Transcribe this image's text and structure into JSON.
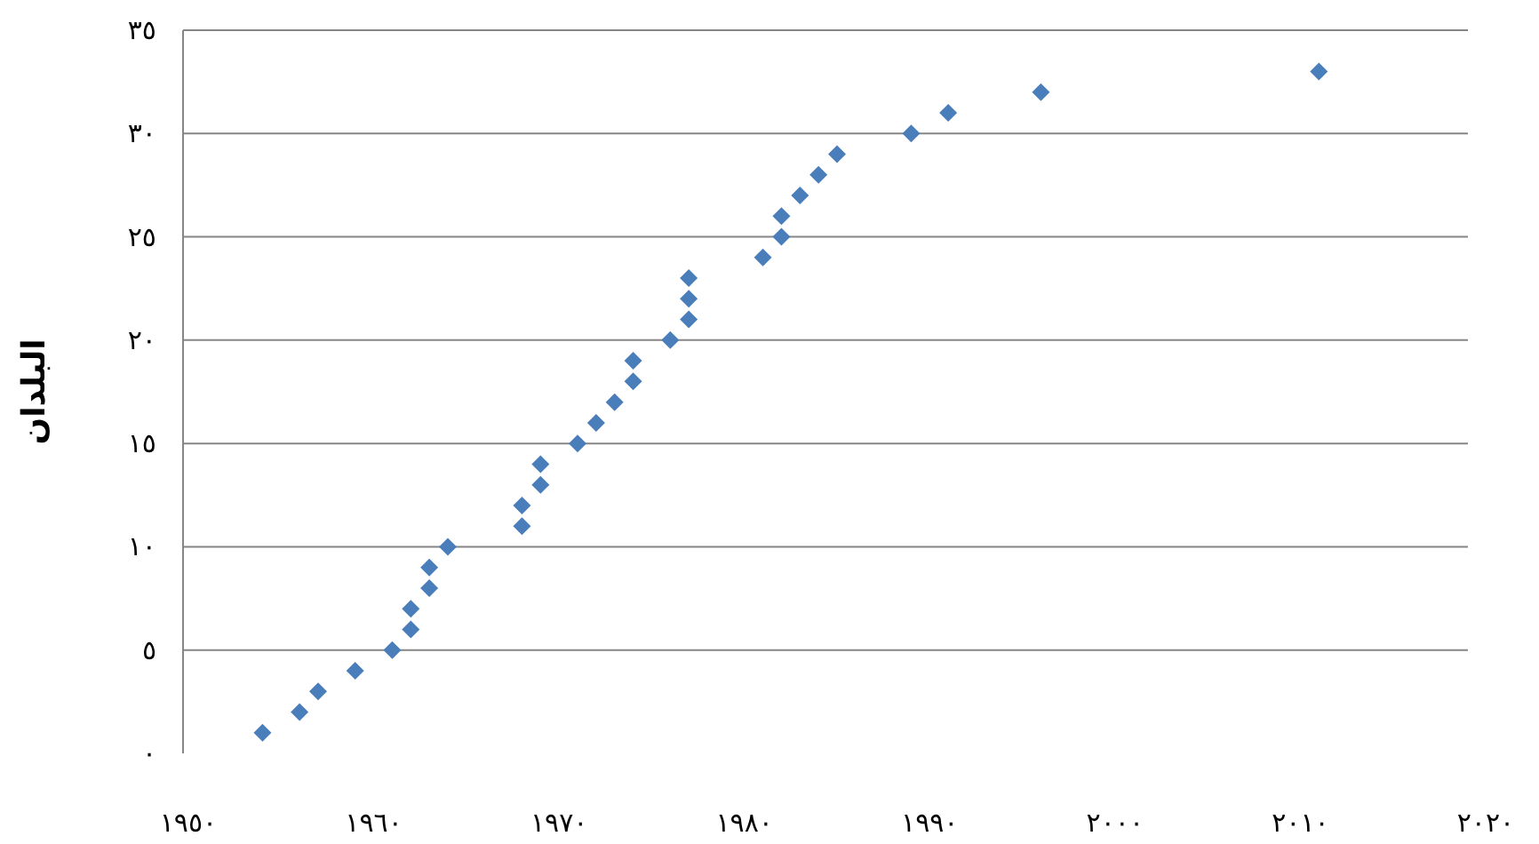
{
  "chart_data": {
    "type": "scatter",
    "ylabel": "البلدان",
    "marker": "diamond",
    "grid": "y",
    "x": [
      1954,
      1956,
      1957,
      1959,
      1961,
      1962,
      1962,
      1963,
      1963,
      1964,
      1968,
      1968,
      1969,
      1969,
      1971,
      1972,
      1973,
      1974,
      1974,
      1976,
      1977,
      1977,
      1977,
      1981,
      1982,
      1982,
      1983,
      1984,
      1985,
      1989,
      1991,
      1996,
      2011
    ],
    "series": [
      {
        "color": "#4a7ebb",
        "values": [
          1,
          2,
          3,
          4,
          5,
          6,
          7,
          8,
          9,
          10,
          11,
          12,
          13,
          14,
          15,
          16,
          17,
          18,
          19,
          20,
          21,
          22,
          23,
          24,
          25,
          26,
          27,
          28,
          29,
          30,
          31,
          32,
          33
        ]
      }
    ],
    "xlim": [
      1950,
      2020
    ],
    "xticks": [
      {
        "value": 1950,
        "label": "١٩٥٠"
      },
      {
        "value": 1960,
        "label": "١٩٦٠"
      },
      {
        "value": 1970,
        "label": "١٩٧٠"
      },
      {
        "value": 1980,
        "label": "١٩٨٠"
      },
      {
        "value": 1990,
        "label": "١٩٩٠"
      },
      {
        "value": 2000,
        "label": "٢٠٠٠"
      },
      {
        "value": 2010,
        "label": "٢٠١٠"
      },
      {
        "value": 2020,
        "label": "٢٠٢٠"
      }
    ],
    "ylim": [
      0,
      35
    ],
    "yticks": [
      {
        "value": 0,
        "label": "٠"
      },
      {
        "value": 5,
        "label": "٥"
      },
      {
        "value": 10,
        "label": "١٠"
      },
      {
        "value": 15,
        "label": "١٥"
      },
      {
        "value": 20,
        "label": "٢٠"
      },
      {
        "value": 25,
        "label": "٢٥"
      },
      {
        "value": 30,
        "label": "٣٠"
      },
      {
        "value": 35,
        "label": "٣٥"
      }
    ]
  }
}
